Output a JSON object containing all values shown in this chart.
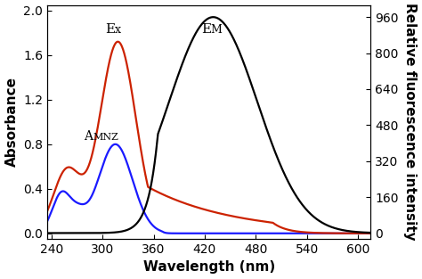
{
  "xlim": [
    235,
    615
  ],
  "ylim_left": [
    -0.05,
    2.05
  ],
  "ylim_right": [
    -26,
    1014
  ],
  "xticks": [
    240,
    300,
    360,
    420,
    480,
    540,
    600
  ],
  "yticks_left": [
    0.0,
    0.4,
    0.8,
    1.2,
    1.6,
    2.0
  ],
  "yticks_right": [
    0,
    160,
    320,
    480,
    640,
    800,
    960
  ],
  "xlabel": "Wavelength (nm)",
  "ylabel_left": "Absorbance",
  "ylabel_right": "Relative fluorescence intensity",
  "color_blue": "#1a1aff",
  "color_red": "#cc2200",
  "color_black": "#000000",
  "lw": 1.6,
  "label_fontsize": 11,
  "tick_fontsize": 10,
  "annot_fontsize": 11
}
